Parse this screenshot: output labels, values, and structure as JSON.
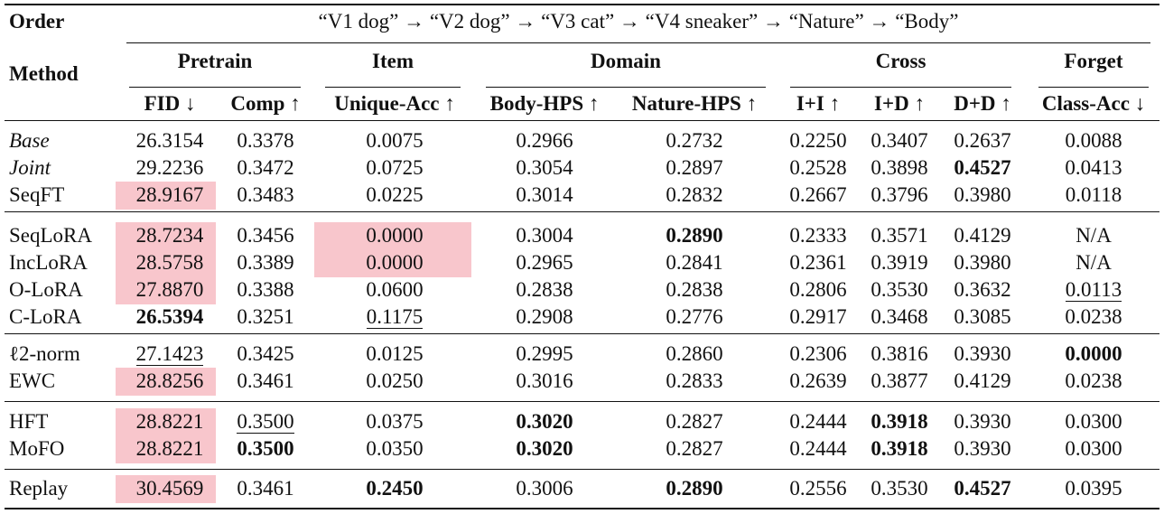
{
  "header": {
    "order_label": "Order",
    "order_sequence": "“V1 dog” → “V2 dog” → “V3 cat” → “V4 sneaker” → “Nature” → “Body”",
    "method_label": "Method",
    "groups": [
      "Pretrain",
      "Item",
      "Domain",
      "Cross",
      "Forget"
    ],
    "columns": [
      "FID ↓",
      "Comp ↑",
      "Unique-Acc ↑",
      "Body-HPS ↑",
      "Nature-HPS ↑",
      "I+I ↑",
      "I+D ↑",
      "D+D ↑",
      "Class-Acc ↓"
    ]
  },
  "highlight_color": "#f8c6cc",
  "rows": [
    {
      "method": "Base",
      "italic": true,
      "values": [
        "26.3154",
        "0.3378",
        "0.0075",
        "0.2966",
        "0.2732",
        "0.2250",
        "0.3407",
        "0.2637",
        "0.0088"
      ],
      "bold": [],
      "underline": [],
      "highlight": []
    },
    {
      "method": "Joint",
      "italic": true,
      "values": [
        "29.2236",
        "0.3472",
        "0.0725",
        "0.3054",
        "0.2897",
        "0.2528",
        "0.3898",
        "0.4527",
        "0.0413"
      ],
      "bold": [
        7
      ],
      "underline": [],
      "highlight": []
    },
    {
      "method": "SeqFT",
      "italic": false,
      "values": [
        "28.9167",
        "0.3483",
        "0.0225",
        "0.3014",
        "0.2832",
        "0.2667",
        "0.3796",
        "0.3980",
        "0.0118"
      ],
      "bold": [],
      "underline": [],
      "highlight": [
        0
      ]
    },
    {
      "method": "SeqLoRA",
      "italic": false,
      "values": [
        "28.7234",
        "0.3456",
        "0.0000",
        "0.3004",
        "0.2890",
        "0.2333",
        "0.3571",
        "0.4129",
        "N/A"
      ],
      "bold": [
        4
      ],
      "underline": [],
      "highlight": [
        0,
        2
      ]
    },
    {
      "method": "IncLoRA",
      "italic": false,
      "values": [
        "28.5758",
        "0.3389",
        "0.0000",
        "0.2965",
        "0.2841",
        "0.2361",
        "0.3919",
        "0.3980",
        "N/A"
      ],
      "bold": [],
      "underline": [],
      "highlight": [
        0,
        2
      ]
    },
    {
      "method": "O-LoRA",
      "italic": false,
      "values": [
        "27.8870",
        "0.3388",
        "0.0600",
        "0.2838",
        "0.2838",
        "0.2806",
        "0.3530",
        "0.3632",
        "0.0113"
      ],
      "bold": [],
      "underline": [
        8
      ],
      "highlight": [
        0
      ]
    },
    {
      "method": "C-LoRA",
      "italic": false,
      "values": [
        "26.5394",
        "0.3251",
        "0.1175",
        "0.2908",
        "0.2776",
        "0.2917",
        "0.3468",
        "0.3085",
        "0.0238"
      ],
      "bold": [
        0
      ],
      "underline": [
        2
      ],
      "highlight": []
    },
    {
      "method": "ℓ2-norm",
      "italic": false,
      "values": [
        "27.1423",
        "0.3425",
        "0.0125",
        "0.2995",
        "0.2860",
        "0.2306",
        "0.3816",
        "0.3930",
        "0.0000"
      ],
      "bold": [
        8
      ],
      "underline": [
        0
      ],
      "highlight": []
    },
    {
      "method": "EWC",
      "italic": false,
      "values": [
        "28.8256",
        "0.3461",
        "0.0250",
        "0.3016",
        "0.2833",
        "0.2639",
        "0.3877",
        "0.4129",
        "0.0238"
      ],
      "bold": [],
      "underline": [],
      "highlight": [
        0
      ]
    },
    {
      "method": "HFT",
      "italic": false,
      "values": [
        "28.8221",
        "0.3500",
        "0.0375",
        "0.3020",
        "0.2827",
        "0.2444",
        "0.3918",
        "0.3930",
        "0.0300"
      ],
      "bold": [
        3,
        6
      ],
      "underline": [
        1
      ],
      "highlight": [
        0
      ]
    },
    {
      "method": "MoFO",
      "italic": false,
      "values": [
        "28.8221",
        "0.3500",
        "0.0350",
        "0.3020",
        "0.2827",
        "0.2444",
        "0.3918",
        "0.3930",
        "0.0300"
      ],
      "bold": [
        1,
        3,
        6
      ],
      "underline": [],
      "highlight": [
        0
      ]
    },
    {
      "method": "Replay",
      "italic": false,
      "values": [
        "30.4569",
        "0.3461",
        "0.2450",
        "0.3006",
        "0.2890",
        "0.2556",
        "0.3530",
        "0.4527",
        "0.0395"
      ],
      "bold": [
        2,
        4,
        7
      ],
      "underline": [],
      "highlight": [
        0
      ]
    }
  ]
}
